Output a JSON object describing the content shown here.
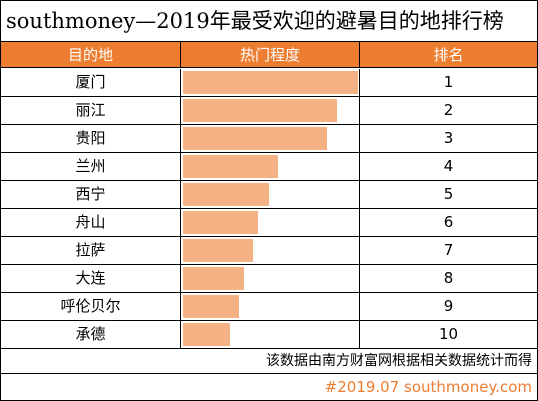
{
  "title": "southmoney—2019年最受欢迎的避暑目的地排行榜",
  "headers": {
    "destination": "目的地",
    "popularity": "热门程度",
    "rank": "排名"
  },
  "chart_data": {
    "type": "bar",
    "orientation": "horizontal",
    "categories": [
      "厦门",
      "丽江",
      "贵阳",
      "兰州",
      "西宁",
      "舟山",
      "拉萨",
      "大连",
      "呼伦贝尔",
      "承德"
    ],
    "ranks": [
      "1",
      "2",
      "3",
      "4",
      "5",
      "6",
      "7",
      "8",
      "9",
      "10"
    ],
    "values": [
      1.0,
      0.88,
      0.82,
      0.54,
      0.49,
      0.43,
      0.4,
      0.35,
      0.32,
      0.27
    ],
    "values_unit": "relative popularity (fraction of top bar, estimated)",
    "bar_color": "#f4b183"
  },
  "note": "该数据由南方财富网根据相关数据统计而得",
  "footer": "#2019.07 southmoney.com",
  "colors": {
    "header_bg": "#ed7d31",
    "header_text": "#ffffff",
    "bar": "#f4b183",
    "footer_text": "#ed7d31"
  }
}
